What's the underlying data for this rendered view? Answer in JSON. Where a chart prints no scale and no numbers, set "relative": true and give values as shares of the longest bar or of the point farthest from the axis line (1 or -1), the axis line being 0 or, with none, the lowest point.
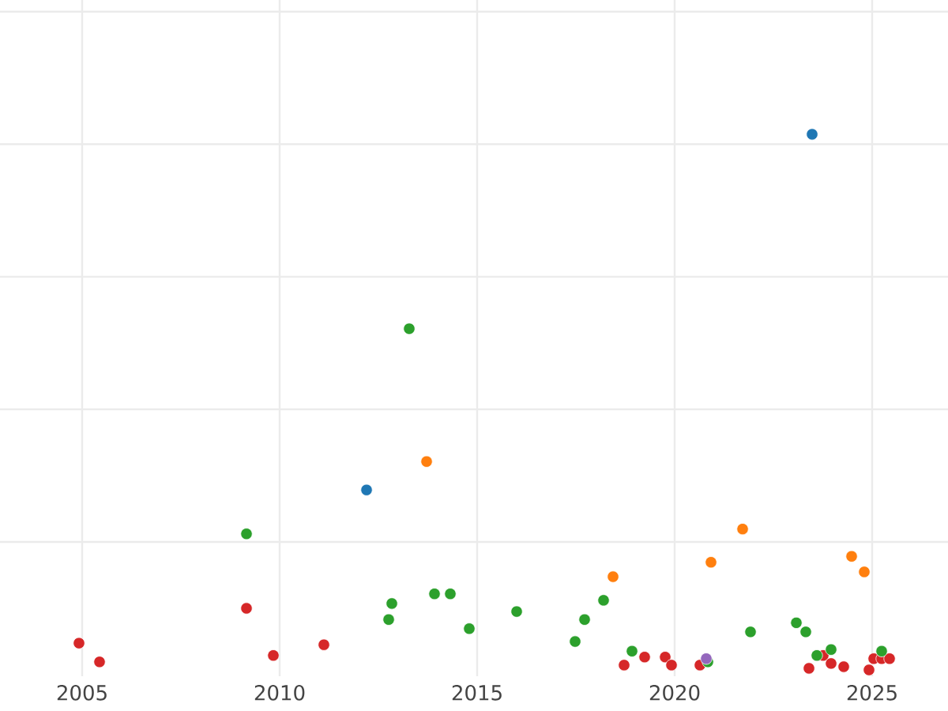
{
  "chart_data": {
    "type": "scatter",
    "relative": true,
    "grid": true,
    "tick_labels": "x",
    "xlim": [
      2002.92,
      2026.92
    ],
    "xticks": [
      2005,
      2010,
      2015,
      2020,
      2025
    ],
    "series": [
      {
        "color": "#d62728",
        "x": [
          2004.92,
          2005.44,
          2009.16,
          2009.84,
          2011.12,
          2018.72,
          2019.24,
          2019.76,
          2019.92,
          2020.64,
          2023.4,
          2023.76,
          2023.96,
          2024.28,
          2024.92,
          2025.04,
          2025.24,
          2025.44
        ],
        "values": [
          0.05,
          0.015,
          0.115,
          0.027,
          0.047,
          0.009,
          0.024,
          0.024,
          0.009,
          0.009,
          0.003,
          0.027,
          0.012,
          0.006,
          0,
          0.021,
          0.021,
          0.021
        ]
      },
      {
        "color": "#2ca02c",
        "x": [
          2009.16,
          2012.76,
          2012.84,
          2013.28,
          2013.92,
          2014.32,
          2014.8,
          2016.0,
          2017.48,
          2017.72,
          2018.2,
          2018.92,
          2020.84,
          2021.92,
          2023.08,
          2023.32,
          2023.6,
          2023.96,
          2025.24
        ],
        "values": [
          0.254,
          0.094,
          0.124,
          0.637,
          0.142,
          0.142,
          0.077,
          0.109,
          0.053,
          0.094,
          0.13,
          0.035,
          0.015,
          0.071,
          0.088,
          0.071,
          0.027,
          0.038,
          0.035
        ]
      },
      {
        "color": "#ff7f0e",
        "x": [
          2013.72,
          2018.44,
          2020.92,
          2021.72,
          2024.48,
          2024.8
        ],
        "values": [
          0.389,
          0.174,
          0.201,
          0.263,
          0.212,
          0.183
        ]
      },
      {
        "color": "#1f77b4",
        "x": [
          2012.2,
          2023.48
        ],
        "values": [
          0.336,
          1.0
        ]
      },
      {
        "color": "#9467bd",
        "x": [
          2020.8
        ],
        "values": [
          0.021
        ]
      }
    ]
  }
}
